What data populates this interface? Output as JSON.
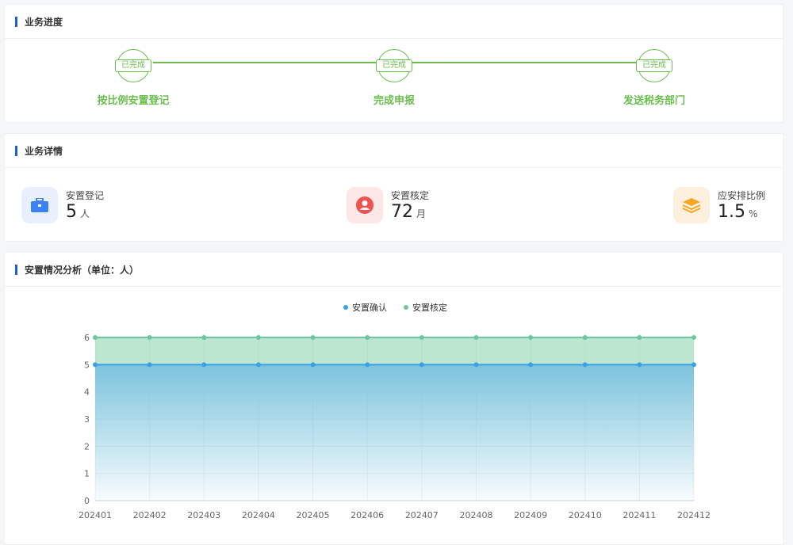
{
  "progress": {
    "title": "业务进度",
    "stamp": "已完成",
    "steps": [
      {
        "label": "按比例安置登记"
      },
      {
        "label": "完成申报"
      },
      {
        "label": "发送税务部门"
      }
    ],
    "color": "#6bbd4e"
  },
  "details": {
    "title": "业务详情",
    "items": [
      {
        "label": "安置登记",
        "value": "5",
        "unit": "人",
        "icon": "briefcase-icon",
        "color": "#3b82f6"
      },
      {
        "label": "安置核定",
        "value": "72",
        "unit": "月",
        "icon": "user-icon",
        "color": "#ef5350"
      },
      {
        "label": "应安排比例",
        "value": "1.5",
        "unit": "%",
        "icon": "layers-icon",
        "color": "#f5a623"
      }
    ]
  },
  "analysis": {
    "title": "安置情况分析（单位：人）"
  },
  "chart_data": {
    "type": "area",
    "categories": [
      "202401",
      "202402",
      "202403",
      "202404",
      "202405",
      "202406",
      "202407",
      "202408",
      "202409",
      "202410",
      "202411",
      "202412"
    ],
    "series": [
      {
        "name": "安置确认",
        "values": [
          5,
          5,
          5,
          5,
          5,
          5,
          5,
          5,
          5,
          5,
          5,
          5
        ],
        "color": "#3ba1e6"
      },
      {
        "name": "安置核定",
        "values": [
          6,
          6,
          6,
          6,
          6,
          6,
          6,
          6,
          6,
          6,
          6,
          6
        ],
        "color": "#6cc79a"
      }
    ],
    "ylim": [
      0,
      6
    ],
    "yticks": [
      0,
      1,
      2,
      3,
      4,
      5,
      6
    ],
    "legend": "top-center",
    "grid": true
  }
}
